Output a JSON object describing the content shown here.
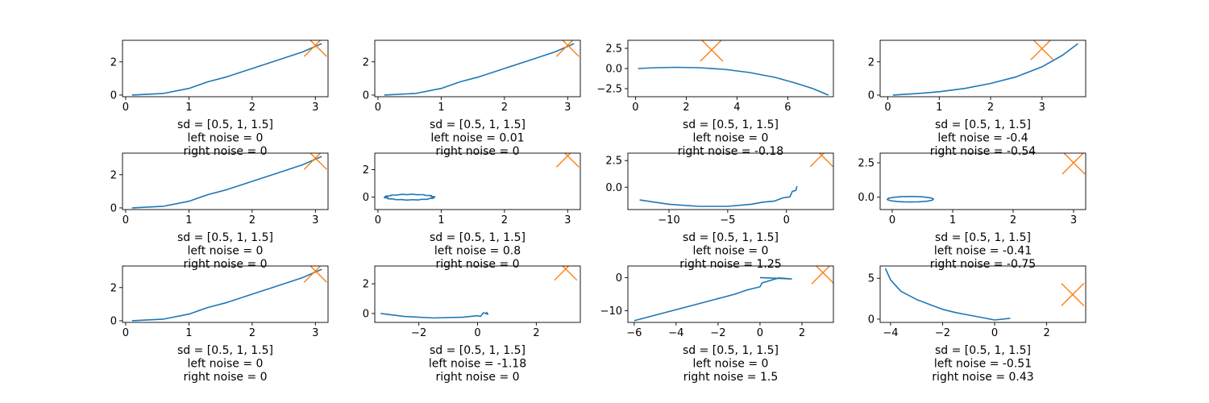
{
  "colors": {
    "series": "#1f77b4",
    "marker": "#ff7f0e",
    "axes": "#000000",
    "background": "#ffffff"
  },
  "chart_data": [
    {
      "type": "line",
      "caption": [
        "sd = [0.5, 1, 1.5]",
        "left noise = 0",
        "right noise = 0"
      ],
      "xlim": [
        -0.05,
        3.2
      ],
      "ylim": [
        -0.1,
        3.3
      ],
      "xticks": [
        "0",
        "1",
        "2",
        "3"
      ],
      "yticks": [
        "0",
        "2"
      ],
      "x": [
        0.1,
        0.6,
        1.0,
        1.3,
        1.6,
        2.0,
        2.4,
        2.8,
        3.1
      ],
      "y": [
        0,
        0.1,
        0.4,
        0.8,
        1.1,
        1.6,
        2.1,
        2.6,
        3.1
      ],
      "marker": {
        "shape": "x",
        "x": 3,
        "y": 3
      }
    },
    {
      "type": "line",
      "caption": [
        "sd = [0.5, 1, 1.5]",
        "left noise = 0.01",
        "right noise = 0"
      ],
      "xlim": [
        -0.05,
        3.2
      ],
      "ylim": [
        -0.1,
        3.3
      ],
      "xticks": [
        "0",
        "1",
        "2",
        "3"
      ],
      "yticks": [
        "0",
        "2"
      ],
      "x": [
        0.1,
        0.6,
        1.0,
        1.3,
        1.6,
        2.0,
        2.4,
        2.8,
        3.1
      ],
      "y": [
        0,
        0.1,
        0.4,
        0.8,
        1.1,
        1.6,
        2.1,
        2.6,
        3.1
      ],
      "marker": {
        "shape": "x",
        "x": 3,
        "y": 3
      }
    },
    {
      "type": "line",
      "caption": [
        "sd = [0.5, 1, 1.5]",
        "left noise = 0",
        "right noise = -0.18"
      ],
      "xlim": [
        -0.3,
        7.8
      ],
      "ylim": [
        -3.5,
        3.5
      ],
      "xticks": [
        "0",
        "2",
        "4",
        "6"
      ],
      "yticks": [
        "2.5",
        "0.0",
        "−2.5"
      ],
      "x": [
        0.1,
        0.8,
        1.6,
        2.5,
        3.5,
        4.5,
        5.5,
        6.3,
        7.0,
        7.6
      ],
      "y": [
        0,
        0.1,
        0.15,
        0.1,
        -0.1,
        -0.5,
        -1.1,
        -1.8,
        -2.5,
        -3.3
      ],
      "marker": {
        "shape": "x",
        "x": 3,
        "y": 2.3
      }
    },
    {
      "type": "line",
      "caption": [
        "sd = [0.5, 1, 1.5]",
        "left noise = -0.4",
        "right noise = -0.54"
      ],
      "xlim": [
        -0.15,
        3.85
      ],
      "ylim": [
        -0.1,
        3.3
      ],
      "xticks": [
        "0",
        "1",
        "2",
        "3"
      ],
      "yticks": [
        "0",
        "2"
      ],
      "x": [
        0.1,
        0.6,
        1.0,
        1.5,
        2.0,
        2.5,
        3.0,
        3.4,
        3.7
      ],
      "y": [
        0,
        0.1,
        0.2,
        0.4,
        0.7,
        1.1,
        1.7,
        2.4,
        3.1
      ],
      "marker": {
        "shape": "x",
        "x": 3,
        "y": 2.8
      }
    },
    {
      "type": "line",
      "caption": [
        "sd = [0.5, 1, 1.5]",
        "left noise = 0",
        "right noise = 0"
      ],
      "xlim": [
        -0.05,
        3.2
      ],
      "ylim": [
        -0.1,
        3.3
      ],
      "xticks": [
        "0",
        "1",
        "2",
        "3"
      ],
      "yticks": [
        "0",
        "2"
      ],
      "x": [
        0.1,
        0.6,
        1.0,
        1.3,
        1.6,
        2.0,
        2.4,
        2.8,
        3.1
      ],
      "y": [
        0,
        0.1,
        0.4,
        0.8,
        1.1,
        1.6,
        2.1,
        2.6,
        3.1
      ],
      "marker": {
        "shape": "x",
        "x": 3,
        "y": 3
      }
    },
    {
      "type": "line",
      "caption": [
        "sd = [0.5, 1, 1.5]",
        "left noise = 0.8",
        "right noise = 0"
      ],
      "xlim": [
        -0.05,
        3.2
      ],
      "ylim": [
        -0.9,
        3.2
      ],
      "xticks": [
        "0",
        "1",
        "2",
        "3"
      ],
      "yticks": [
        "0",
        "2"
      ],
      "curve": "ring",
      "ring": {
        "cx": 0.5,
        "cy": 0,
        "rx": 0.38,
        "ry": 0.2,
        "wobble": 0.06,
        "turns": 3
      },
      "marker": {
        "shape": "x",
        "x": 3,
        "y": 3
      }
    },
    {
      "type": "line",
      "caption": [
        "sd = [0.5, 1, 1.5]",
        "left noise = 0",
        "right noise = 1.25"
      ],
      "xlim": [
        -13.5,
        4
      ],
      "ylim": [
        -2.1,
        3.2
      ],
      "xticks": [
        "−10",
        "−5",
        "0"
      ],
      "yticks": [
        "2.5",
        "0.0"
      ],
      "x": [
        -12.5,
        -10,
        -7.5,
        -5,
        -3,
        -2,
        -1,
        -0.3,
        0.3,
        0.5,
        0.8,
        0.9
      ],
      "y": [
        -1.2,
        -1.6,
        -1.8,
        -1.8,
        -1.6,
        -1.4,
        -1.3,
        -1.0,
        -0.9,
        -0.4,
        -0.3,
        0.1
      ],
      "marker": {
        "shape": "x",
        "x": 3,
        "y": 3
      }
    },
    {
      "type": "line",
      "caption": [
        "sd = [0.5, 1, 1.5]",
        "left noise = -0.41",
        "right noise = -0.75"
      ],
      "xlim": [
        -0.2,
        3.2
      ],
      "ylim": [
        -0.9,
        3.2
      ],
      "xticks": [
        "0",
        "1",
        "2",
        "3"
      ],
      "yticks": [
        "2.5",
        "0.0"
      ],
      "curve": "ring",
      "ring": {
        "cx": 0.3,
        "cy": -0.15,
        "rx": 0.38,
        "ry": 0.2,
        "wobble": 0.01,
        "turns": 2
      },
      "marker": {
        "shape": "x",
        "x": 3,
        "y": 2.5
      }
    },
    {
      "type": "line",
      "caption": [
        "sd = [0.5, 1, 1.5]",
        "left noise = 0",
        "right noise = 0"
      ],
      "xlim": [
        -0.05,
        3.2
      ],
      "ylim": [
        -0.1,
        3.3
      ],
      "xticks": [
        "0",
        "1",
        "2",
        "3"
      ],
      "yticks": [
        "0",
        "2"
      ],
      "x": [
        0.1,
        0.6,
        1.0,
        1.3,
        1.6,
        2.0,
        2.4,
        2.8,
        3.1
      ],
      "y": [
        0,
        0.1,
        0.4,
        0.8,
        1.1,
        1.6,
        2.1,
        2.6,
        3.1
      ],
      "marker": {
        "shape": "x",
        "x": 3,
        "y": 3
      }
    },
    {
      "type": "line",
      "caption": [
        "sd = [0.5, 1, 1.5]",
        "left noise = -1.18",
        "right noise = 0"
      ],
      "xlim": [
        -3.5,
        3.5
      ],
      "ylim": [
        -0.6,
        3.2
      ],
      "xticks": [
        "−2",
        "0",
        "2"
      ],
      "yticks": [
        "0",
        "2"
      ],
      "x": [
        -3.3,
        -2.5,
        -1.5,
        -0.5,
        0,
        0.1,
        0.2,
        0.35,
        0.3
      ],
      "y": [
        0,
        -0.2,
        -0.3,
        -0.25,
        -0.15,
        -0.2,
        0.05,
        -0.05,
        0.1
      ],
      "marker": {
        "shape": "x",
        "x": 3,
        "y": 3
      }
    },
    {
      "type": "line",
      "caption": [
        "sd = [0.5, 1, 1.5]",
        "left noise = 0",
        "right noise = 1.5"
      ],
      "xlim": [
        -6.3,
        3.5
      ],
      "ylim": [
        -13.5,
        3.5
      ],
      "xticks": [
        "−6",
        "−4",
        "−2",
        "0",
        "2"
      ],
      "yticks": [
        "0",
        "−10"
      ],
      "x": [
        -6,
        -4.5,
        -3,
        -1.8,
        -1.2,
        -0.6,
        0,
        0.1,
        0.9,
        1.5,
        0
      ],
      "y": [
        -13,
        -10.5,
        -8,
        -6,
        -5,
        -3.7,
        -2.8,
        -1.6,
        -0.1,
        -0.4,
        0
      ],
      "marker": {
        "shape": "x",
        "x": 3,
        "y": 1.5
      }
    },
    {
      "type": "line",
      "caption": [
        "sd = [0.5, 1, 1.5]",
        "left noise = -0.51",
        "right noise = 0.43"
      ],
      "xlim": [
        -4.4,
        3.5
      ],
      "ylim": [
        -0.4,
        6.5
      ],
      "xticks": [
        "−4",
        "−2",
        "0",
        "2"
      ],
      "yticks": [
        "5",
        "0"
      ],
      "x": [
        -4.2,
        -4.0,
        -3.6,
        -3.0,
        -2.5,
        -2.0,
        -1.5,
        -1.0,
        -0.5,
        0,
        0.6
      ],
      "y": [
        6.2,
        4.8,
        3.4,
        2.4,
        1.8,
        1.2,
        0.8,
        0.5,
        0.2,
        -0.1,
        0.1
      ],
      "marker": {
        "shape": "x",
        "x": 3,
        "y": 3
      }
    }
  ]
}
